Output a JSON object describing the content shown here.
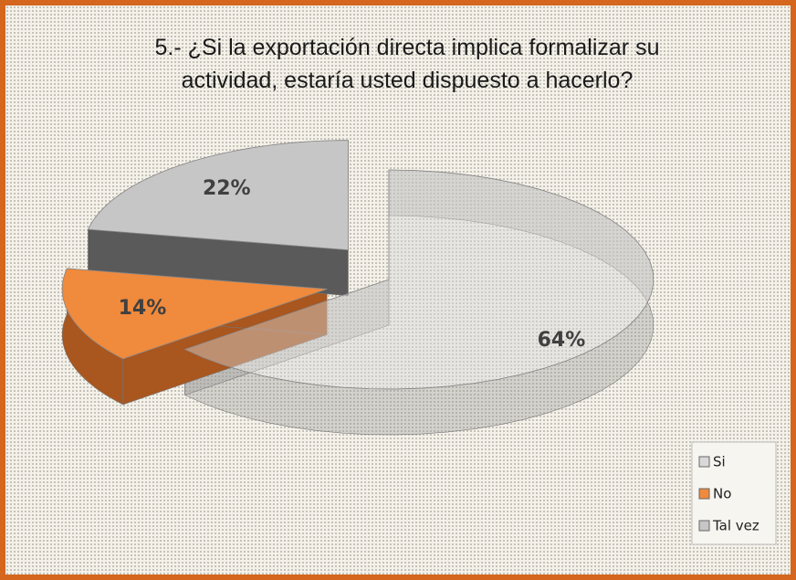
{
  "chart_data": {
    "type": "pie3d",
    "title": "5.- ¿Si la exportación directa implica formalizar su actividad, estaría usted dispuesto a hacerlo?",
    "categories": [
      "Si",
      "No",
      "Tal vez"
    ],
    "values": [
      64,
      14,
      22
    ],
    "value_labels": [
      "64%",
      "14%",
      "22%"
    ],
    "colors": [
      "#d9d9d9",
      "#f08a3c",
      "#c6c6c6"
    ],
    "legend": "bottom-right"
  }
}
